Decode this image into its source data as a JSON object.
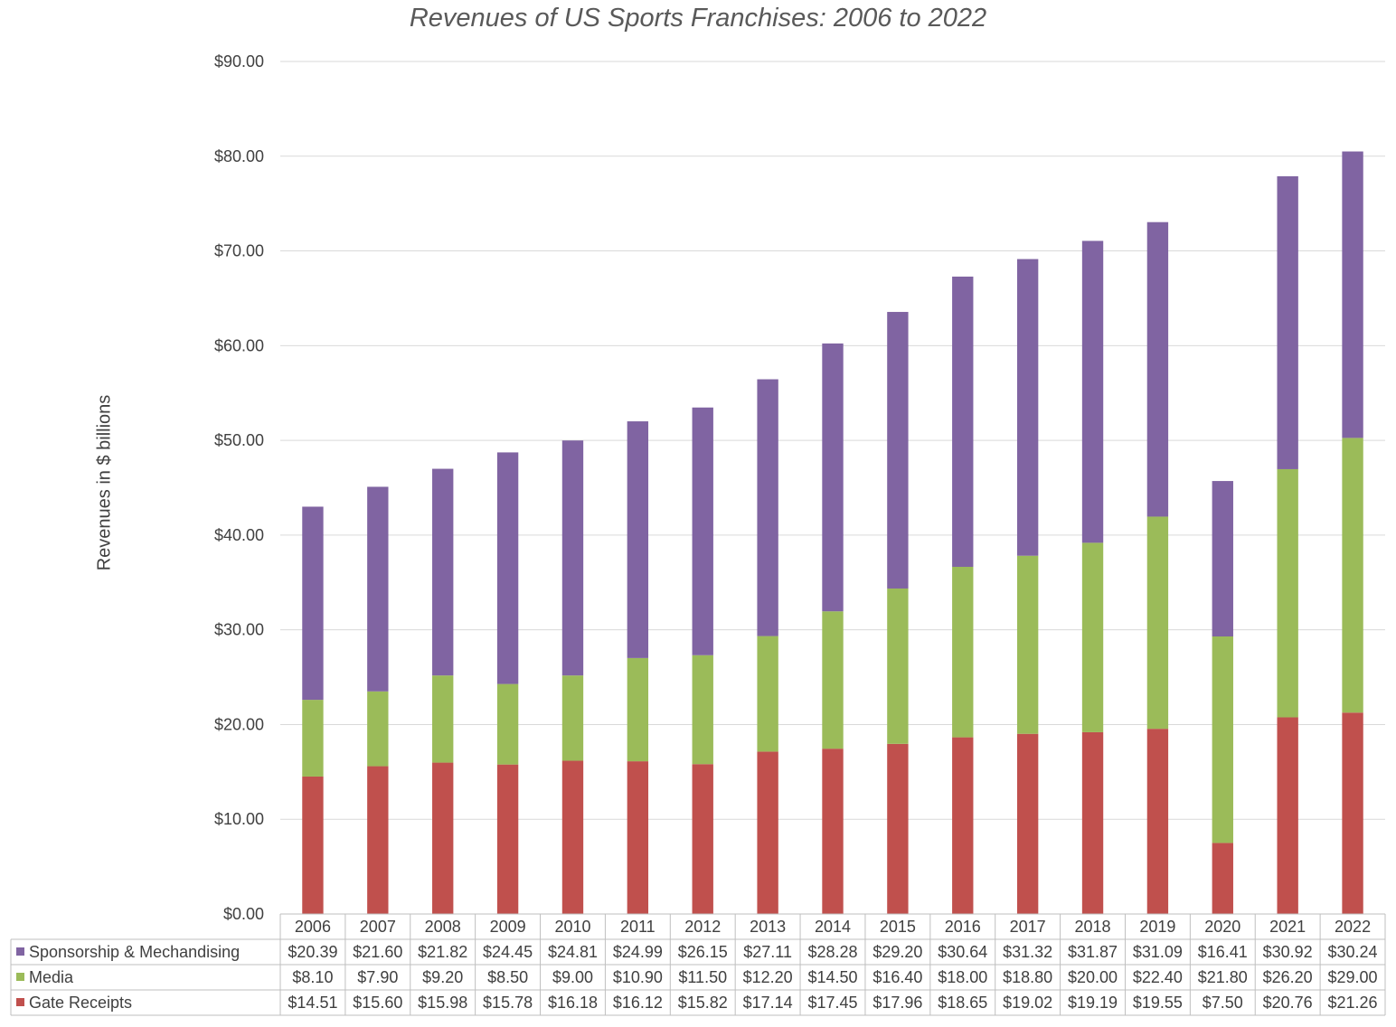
{
  "chart_data": {
    "type": "bar",
    "stacked": true,
    "title": "Revenues of US Sports Franchises: 2006 to 2022",
    "xlabel": "",
    "ylabel": "Revenues in $ billions",
    "ylim": [
      0,
      90
    ],
    "yticks": [
      "$0.00",
      "$10.00",
      "$20.00",
      "$30.00",
      "$40.00",
      "$50.00",
      "$60.00",
      "$70.00",
      "$80.00",
      "$90.00"
    ],
    "grid": true,
    "legend": "data-table",
    "categories": [
      "2006",
      "2007",
      "2008",
      "2009",
      "2010",
      "2011",
      "2012",
      "2013",
      "2014",
      "2015",
      "2016",
      "2017",
      "2018",
      "2019",
      "2020",
      "2021",
      "2022"
    ],
    "series": [
      {
        "name": "Gate Receipts",
        "color": "#c0504d",
        "values": [
          14.51,
          15.6,
          15.98,
          15.78,
          16.18,
          16.12,
          15.82,
          17.14,
          17.45,
          17.96,
          18.65,
          19.02,
          19.19,
          19.55,
          7.5,
          20.76,
          21.26
        ],
        "labels": [
          "$14.51",
          "$15.60",
          "$15.98",
          "$15.78",
          "$16.18",
          "$16.12",
          "$15.82",
          "$17.14",
          "$17.45",
          "$17.96",
          "$18.65",
          "$19.02",
          "$19.19",
          "$19.55",
          "$7.50",
          "$20.76",
          "$21.26"
        ]
      },
      {
        "name": "Media",
        "color": "#9bbb59",
        "values": [
          8.1,
          7.9,
          9.2,
          8.5,
          9.0,
          10.9,
          11.5,
          12.2,
          14.5,
          16.4,
          18.0,
          18.8,
          20.0,
          22.4,
          21.8,
          26.2,
          29.0
        ],
        "labels": [
          "$8.10",
          "$7.90",
          "$9.20",
          "$8.50",
          "$9.00",
          "$10.90",
          "$11.50",
          "$12.20",
          "$14.50",
          "$16.40",
          "$18.00",
          "$18.80",
          "$20.00",
          "$22.40",
          "$21.80",
          "$26.20",
          "$29.00"
        ]
      },
      {
        "name": "Sponsorship & Mechandising",
        "color": "#8064a2",
        "values": [
          20.39,
          21.6,
          21.82,
          24.45,
          24.81,
          24.99,
          26.15,
          27.11,
          28.28,
          29.2,
          30.64,
          31.32,
          31.87,
          31.09,
          16.41,
          30.92,
          30.24
        ],
        "labels": [
          "$20.39",
          "$21.60",
          "$21.82",
          "$24.45",
          "$24.81",
          "$24.99",
          "$26.15",
          "$27.11",
          "$28.28",
          "$29.20",
          "$30.64",
          "$31.32",
          "$31.87",
          "$31.09",
          "$16.41",
          "$30.92",
          "$30.24"
        ]
      }
    ]
  }
}
